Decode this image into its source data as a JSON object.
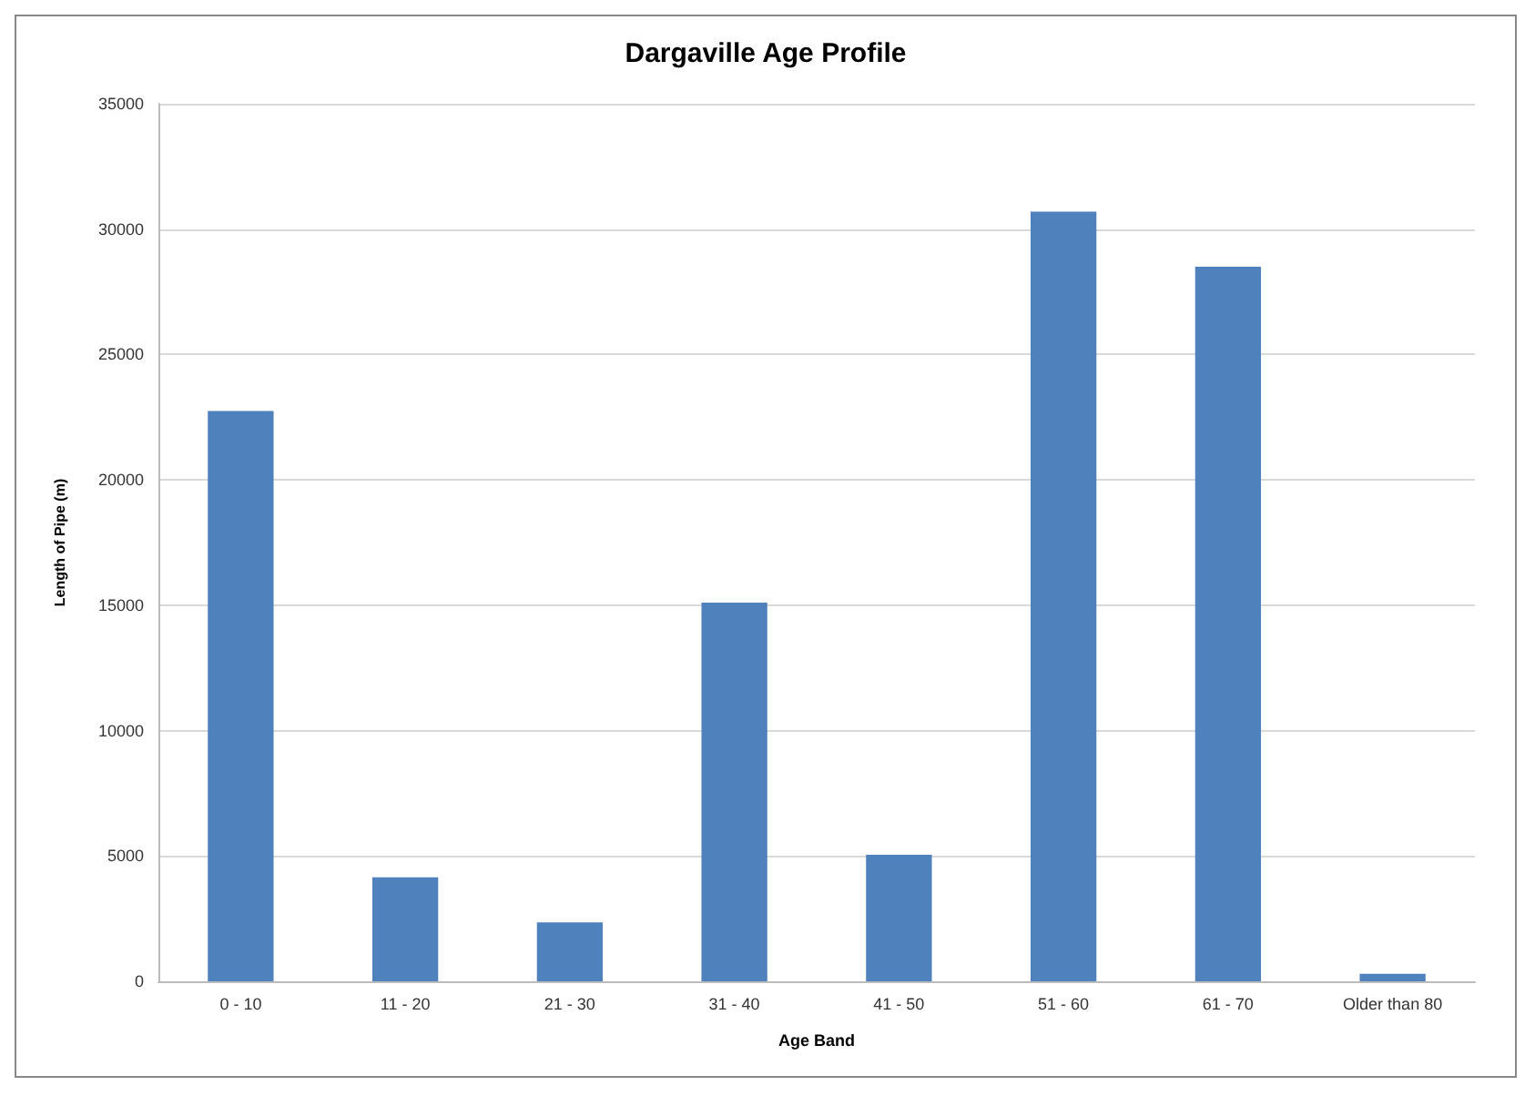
{
  "chart_data": {
    "type": "bar",
    "title": "Dargaville Age Profile",
    "xlabel": "Age Band",
    "ylabel": "Length of Pipe (m)",
    "categories": [
      "0 - 10",
      "11 - 20",
      "21 - 30",
      "31 - 40",
      "41 - 50",
      "51 - 60",
      "61 - 70",
      "Older than 80"
    ],
    "values": [
      22750,
      4150,
      2350,
      15100,
      5050,
      30700,
      28500,
      300
    ],
    "color": "#4f81bd",
    "ylim": [
      0,
      35000
    ],
    "yticks": [
      0,
      5000,
      10000,
      15000,
      20000,
      25000,
      30000,
      35000
    ],
    "grid": "y"
  }
}
